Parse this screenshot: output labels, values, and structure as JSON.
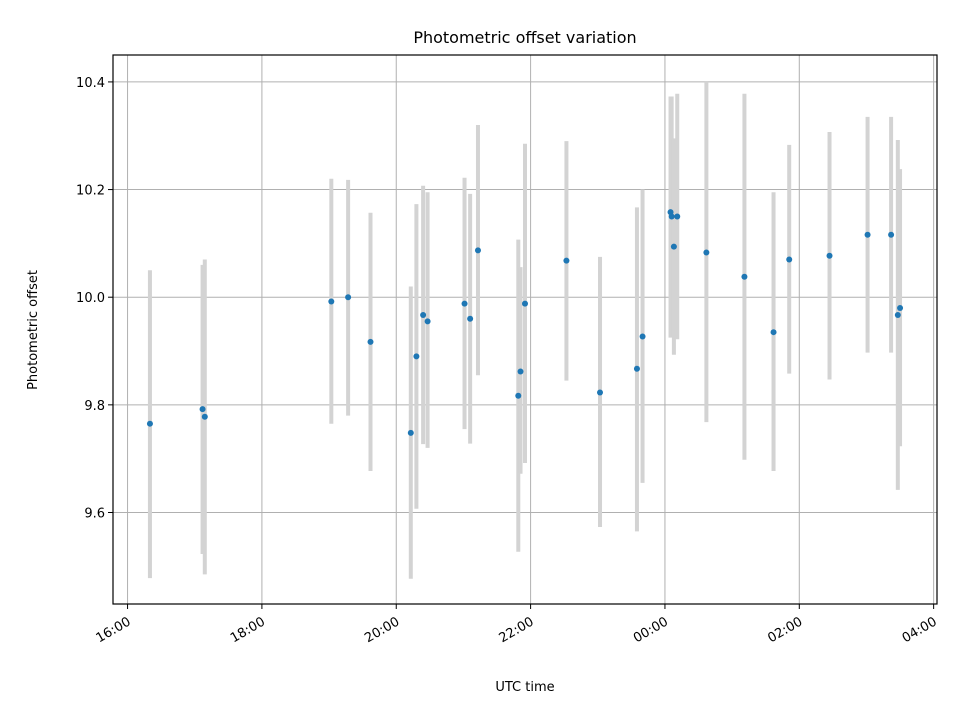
{
  "chart_data": {
    "type": "scatter",
    "title": "Photometric offset variation",
    "xlabel": "UTC time",
    "ylabel": "Photometric offset",
    "x_unit": "UTC time, hours (16:00 start, values past 24 continue into next day)",
    "xlim": [
      "15:47",
      "04:03"
    ],
    "ylim": [
      9.43,
      10.45
    ],
    "x_ticks": [
      "16:00",
      "18:00",
      "20:00",
      "22:00",
      "00:00",
      "02:00",
      "04:00"
    ],
    "y_ticks": [
      "9.6",
      "9.8",
      "10.0",
      "10.2",
      "10.4"
    ],
    "grid": true,
    "colors": {
      "point": "#1f77b4",
      "errorbar": "#d3d3d3"
    },
    "points": [
      {
        "time": "16:20",
        "y": 9.765,
        "ylo": 9.478,
        "yhi": 10.05
      },
      {
        "time": "17:07",
        "y": 9.792,
        "ylo": 9.523,
        "yhi": 10.06
      },
      {
        "time": "17:09",
        "y": 9.778,
        "ylo": 9.485,
        "yhi": 10.07
      },
      {
        "time": "19:02",
        "y": 9.992,
        "ylo": 9.765,
        "yhi": 10.22
      },
      {
        "time": "19:17",
        "y": 10.0,
        "ylo": 9.78,
        "yhi": 10.218
      },
      {
        "time": "19:37",
        "y": 9.917,
        "ylo": 9.677,
        "yhi": 10.157
      },
      {
        "time": "20:13",
        "y": 9.748,
        "ylo": 9.477,
        "yhi": 10.02
      },
      {
        "time": "20:18",
        "y": 9.89,
        "ylo": 9.607,
        "yhi": 10.173
      },
      {
        "time": "20:24",
        "y": 9.967,
        "ylo": 9.727,
        "yhi": 10.207
      },
      {
        "time": "20:28",
        "y": 9.955,
        "ylo": 9.72,
        "yhi": 10.195
      },
      {
        "time": "21:01",
        "y": 9.988,
        "ylo": 9.755,
        "yhi": 10.222
      },
      {
        "time": "21:06",
        "y": 9.96,
        "ylo": 9.728,
        "yhi": 10.192
      },
      {
        "time": "21:13",
        "y": 10.087,
        "ylo": 9.855,
        "yhi": 10.32
      },
      {
        "time": "21:49",
        "y": 9.817,
        "ylo": 9.527,
        "yhi": 10.107
      },
      {
        "time": "21:51",
        "y": 9.862,
        "ylo": 9.672,
        "yhi": 10.056
      },
      {
        "time": "21:55",
        "y": 9.988,
        "ylo": 9.692,
        "yhi": 10.285
      },
      {
        "time": "22:32",
        "y": 10.068,
        "ylo": 9.845,
        "yhi": 10.29
      },
      {
        "time": "23:02",
        "y": 9.823,
        "ylo": 9.573,
        "yhi": 10.075
      },
      {
        "time": "23:35",
        "y": 9.867,
        "ylo": 9.565,
        "yhi": 10.167
      },
      {
        "time": "23:40",
        "y": 9.927,
        "ylo": 9.655,
        "yhi": 10.2
      },
      {
        "time": "00:05",
        "y": 10.158,
        "ylo": 9.925,
        "yhi": 10.373
      },
      {
        "time": "00:06",
        "y": 10.15,
        "ylo": 9.928,
        "yhi": 10.373
      },
      {
        "time": "00:08",
        "y": 10.094,
        "ylo": 9.893,
        "yhi": 10.295
      },
      {
        "time": "00:11",
        "y": 10.15,
        "ylo": 9.922,
        "yhi": 10.378
      },
      {
        "time": "00:37",
        "y": 10.083,
        "ylo": 9.768,
        "yhi": 10.4
      },
      {
        "time": "01:11",
        "y": 10.038,
        "ylo": 9.698,
        "yhi": 10.378
      },
      {
        "time": "01:37",
        "y": 9.935,
        "ylo": 9.677,
        "yhi": 10.195
      },
      {
        "time": "01:51",
        "y": 10.07,
        "ylo": 9.858,
        "yhi": 10.283
      },
      {
        "time": "02:27",
        "y": 10.077,
        "ylo": 9.847,
        "yhi": 10.307
      },
      {
        "time": "03:01",
        "y": 10.116,
        "ylo": 9.897,
        "yhi": 10.335
      },
      {
        "time": "03:22",
        "y": 10.116,
        "ylo": 9.897,
        "yhi": 10.335
      },
      {
        "time": "03:28",
        "y": 9.967,
        "ylo": 9.642,
        "yhi": 10.292
      },
      {
        "time": "03:30",
        "y": 9.98,
        "ylo": 9.723,
        "yhi": 10.238
      }
    ]
  }
}
